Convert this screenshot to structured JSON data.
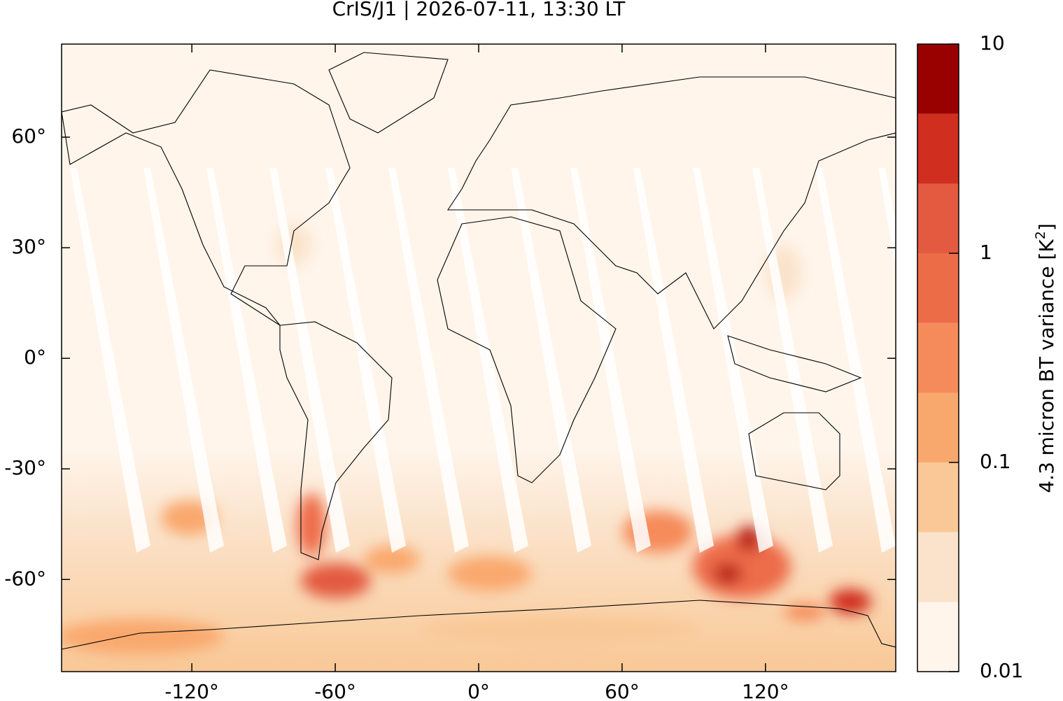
{
  "chart_data": {
    "type": "map",
    "title": "CrIS/J1 | 2026-07-11, 13:30 LT",
    "xlim": [
      -174.5,
      174.5
    ],
    "ylim": [
      -85,
      85.25
    ],
    "xticks": [
      {
        "value": -120,
        "label": "-120°"
      },
      {
        "value": -60,
        "label": "-60°"
      },
      {
        "value": 0,
        "label": "0°"
      },
      {
        "value": 60,
        "label": "60°"
      },
      {
        "value": 120,
        "label": "120°"
      }
    ],
    "yticks": [
      {
        "value": 60,
        "label": "60°"
      },
      {
        "value": 30,
        "label": "30°"
      },
      {
        "value": 0,
        "label": "0°"
      },
      {
        "value": -30,
        "label": "-30°"
      },
      {
        "value": -60,
        "label": "-60°"
      }
    ],
    "colorbar": {
      "label": "4.3 micron BT variance [K",
      "label_superscript": "2",
      "label_suffix": "]",
      "scale": "log",
      "levels": [
        0.01,
        0.0215,
        0.0464,
        0.1,
        0.215,
        0.464,
        1,
        2.15,
        4.64,
        10
      ],
      "colors": [
        "#fff5eb",
        "#fbe3cb",
        "#f9c896",
        "#f9a86d",
        "#f58b5a",
        "#ed6c48",
        "#e35a40",
        "#d02e1f",
        "#990000"
      ],
      "ticks": [
        0.01,
        0.1,
        1,
        10
      ]
    }
  }
}
